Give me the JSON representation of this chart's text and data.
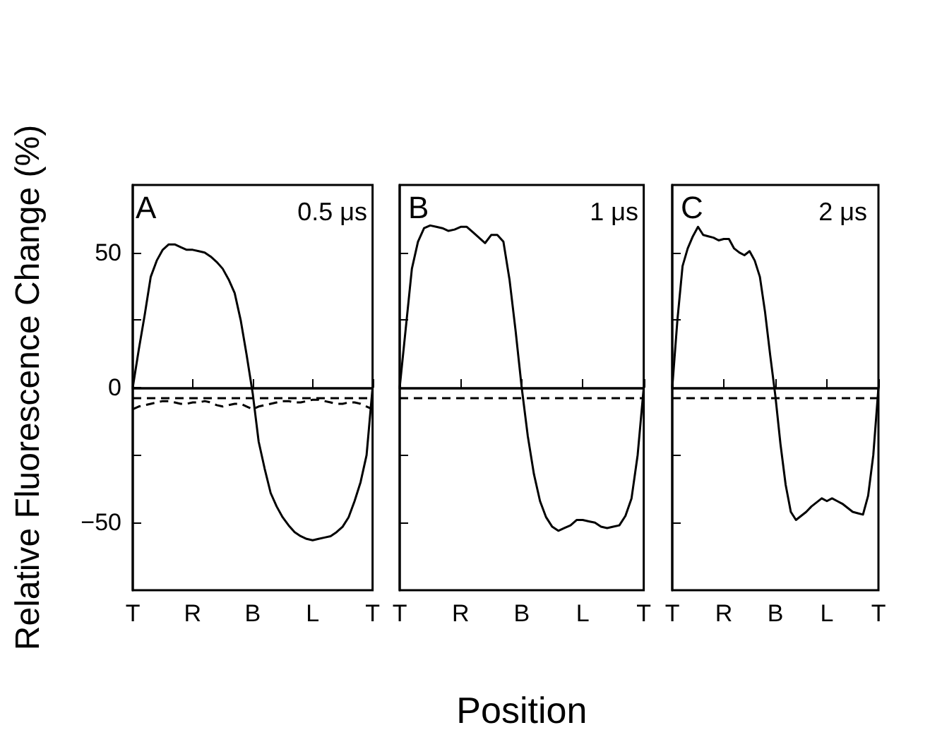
{
  "chart_data": [
    {
      "type": "line",
      "ylabel": "Relative Fluorescence Change (%)",
      "annotations": [
        "A",
        "0.5 μs"
      ],
      "categories": [
        "T",
        null,
        null,
        null,
        null,
        null,
        null,
        null,
        null,
        null,
        "R",
        null,
        null,
        null,
        null,
        null,
        null,
        null,
        null,
        null,
        "B",
        null,
        null,
        null,
        null,
        null,
        null,
        null,
        null,
        null,
        "L",
        null,
        null,
        null,
        null,
        null,
        null,
        null,
        null,
        null,
        "T"
      ],
      "ylim": [
        -75,
        75
      ],
      "yticks": [
        {
          "value": -50,
          "label": "−50"
        },
        {
          "value": -25,
          "label": null
        },
        0,
        {
          "value": 25,
          "label": null
        },
        50
      ],
      "grid": false,
      "marker": "none",
      "series": [
        {
          "color": "#000000",
          "line_style": "solid",
          "values": [
            0,
            14,
            27,
            41,
            47,
            51,
            53,
            53,
            52,
            51,
            51,
            50.5,
            50,
            48.5,
            46.5,
            44,
            40,
            35,
            25,
            12,
            -2,
            -20,
            -30,
            -39,
            -44,
            -48,
            -51,
            -53.5,
            -55,
            -56,
            -56.5,
            -56,
            -55.5,
            -55,
            -53.5,
            -51.5,
            -48,
            -42,
            -35,
            -25,
            0
          ]
        },
        {
          "color": "#000000",
          "line_style": "dashed",
          "values": [
            -8,
            -7,
            -6.5,
            -6,
            -5.5,
            -5,
            -5,
            -5.5,
            -6,
            -6,
            -5.5,
            -5.5,
            -5,
            -5.5,
            -6.5,
            -7,
            -6.5,
            -6,
            -6,
            -7,
            -8,
            -7,
            -6.5,
            -6,
            -5.5,
            -5,
            -5,
            -5.5,
            -5.5,
            -5,
            -4.5,
            -4.5,
            -5,
            -5.5,
            -6,
            -6,
            -5.5,
            -5.5,
            -6,
            -7,
            -8
          ]
        }
      ],
      "ref_lines": [
        {
          "axis": "y",
          "value": 0,
          "color": "#000000",
          "line_style": "solid"
        },
        {
          "axis": "y",
          "value": -4,
          "color": "#000000",
          "line_style": "dashed"
        }
      ]
    },
    {
      "type": "line",
      "xlabel": "Position",
      "annotations": [
        "B",
        "1 μs"
      ],
      "categories": [
        "T",
        null,
        null,
        null,
        null,
        null,
        null,
        null,
        null,
        null,
        "R",
        null,
        null,
        null,
        null,
        null,
        null,
        null,
        null,
        null,
        "B",
        null,
        null,
        null,
        null,
        null,
        null,
        null,
        null,
        null,
        "L",
        null,
        null,
        null,
        null,
        null,
        null,
        null,
        null,
        null,
        "T"
      ],
      "ylim": [
        -75,
        75
      ],
      "yticks": [
        {
          "value": -50,
          "label": null
        },
        {
          "value": -25,
          "label": null
        },
        {
          "value": 25,
          "label": null
        },
        {
          "value": 50,
          "label": null
        }
      ],
      "tick_labels": "x",
      "grid": false,
      "marker": "none",
      "series": [
        {
          "color": "#000000",
          "line_style": "solid",
          "values": [
            0,
            22,
            44,
            54,
            59,
            60,
            59.5,
            59,
            58,
            58.5,
            59.5,
            59.5,
            57.5,
            55.5,
            53.5,
            56.5,
            56.5,
            54,
            40,
            21,
            0,
            -18,
            -32,
            -42,
            -48,
            -51.5,
            -53,
            -52,
            -51,
            -49,
            -49,
            -49.5,
            -50,
            -51.5,
            -52,
            -51.5,
            -51,
            -47.5,
            -41,
            -25,
            0
          ]
        }
      ],
      "ref_lines": [
        {
          "axis": "y",
          "value": 0,
          "color": "#000000",
          "line_style": "solid"
        },
        {
          "axis": "y",
          "value": -4,
          "color": "#000000",
          "line_style": "dashed"
        }
      ]
    },
    {
      "type": "line",
      "annotations": [
        "C",
        "2 μs"
      ],
      "categories": [
        "T",
        null,
        null,
        null,
        null,
        null,
        null,
        null,
        null,
        null,
        "R",
        null,
        null,
        null,
        null,
        null,
        null,
        null,
        null,
        null,
        "B",
        null,
        null,
        null,
        null,
        null,
        null,
        null,
        null,
        null,
        "L",
        null,
        null,
        null,
        null,
        null,
        null,
        null,
        null,
        null,
        "T"
      ],
      "ylim": [
        -75,
        75
      ],
      "yticks": [
        {
          "value": -50,
          "label": null
        },
        {
          "value": -25,
          "label": null
        },
        {
          "value": 25,
          "label": null
        },
        {
          "value": 50,
          "label": null
        }
      ],
      "tick_labels": "x",
      "grid": false,
      "marker": "none",
      "series": [
        {
          "color": "#000000",
          "line_style": "solid",
          "values": [
            0,
            25,
            45,
            51.5,
            56,
            59.5,
            56.5,
            56,
            55.5,
            54.5,
            55,
            55,
            51.5,
            50,
            49,
            50.5,
            47,
            41,
            28,
            12,
            -3,
            -21,
            -36,
            -46,
            -49,
            -47.5,
            -46,
            -44,
            -42.5,
            -41,
            -42,
            -41,
            -42,
            -43,
            -44.5,
            -46,
            -46.5,
            -47,
            -40,
            -25,
            0
          ]
        }
      ],
      "ref_lines": [
        {
          "axis": "y",
          "value": 0,
          "color": "#000000",
          "line_style": "solid"
        },
        {
          "axis": "y",
          "value": -4,
          "color": "#000000",
          "line_style": "dashed"
        }
      ]
    }
  ]
}
